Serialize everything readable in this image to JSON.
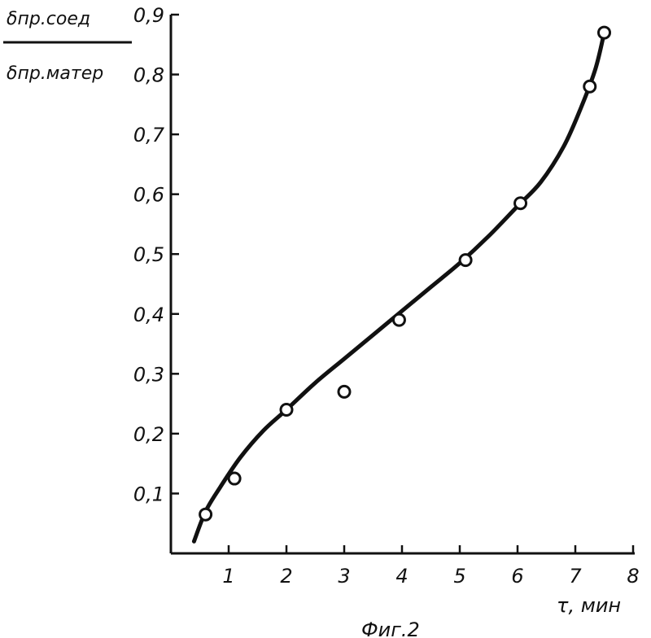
{
  "chart_data": {
    "type": "scatter",
    "ylabel_numerator": "δпр.соед",
    "ylabel_denominator": "δпр.матер",
    "xlabel": "τ, мин",
    "caption": "Фиг.2",
    "xlim": [
      0,
      8
    ],
    "ylim": [
      0,
      0.9
    ],
    "x_ticks": [
      1,
      2,
      3,
      4,
      5,
      6,
      7,
      8
    ],
    "x_tick_labels": [
      "1",
      "2",
      "3",
      "4",
      "5",
      "6",
      "7",
      "8"
    ],
    "y_ticks": [
      0.1,
      0.2,
      0.3,
      0.4,
      0.5,
      0.6,
      0.7,
      0.8,
      0.9
    ],
    "y_tick_labels": [
      "0,1",
      "0,2",
      "0,3",
      "0,4",
      "0,5",
      "0,6",
      "0,7",
      "0,8",
      "0,9"
    ],
    "grid": false,
    "points": {
      "x": [
        0.6,
        1.1,
        2.0,
        3.0,
        3.95,
        5.1,
        6.05,
        7.25,
        7.5
      ],
      "y": [
        0.065,
        0.125,
        0.24,
        0.27,
        0.39,
        0.49,
        0.585,
        0.78,
        0.87
      ]
    },
    "fit_curve": {
      "x": [
        0.4,
        0.6,
        0.85,
        1.2,
        1.6,
        2.0,
        2.5,
        3.0,
        3.5,
        4.0,
        4.5,
        5.0,
        5.5,
        6.0,
        6.4,
        6.8,
        7.1,
        7.35,
        7.5
      ],
      "y": [
        0.02,
        0.07,
        0.11,
        0.16,
        0.205,
        0.24,
        0.285,
        0.325,
        0.365,
        0.405,
        0.445,
        0.485,
        0.53,
        0.58,
        0.62,
        0.68,
        0.745,
        0.81,
        0.87
      ]
    }
  }
}
